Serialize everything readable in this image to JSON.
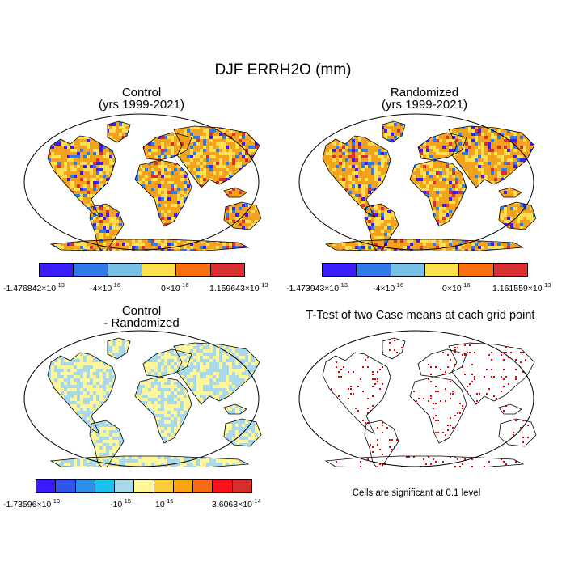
{
  "title": "DJF ERRH2O (mm)",
  "panels": {
    "control": {
      "line1": "Control",
      "line2": "(yrs 1999-2021)"
    },
    "randomized": {
      "line1": "Randomized",
      "line2": "(yrs 1999-2021)"
    },
    "difference": {
      "line1": "Control",
      "line2": "- Randomized"
    },
    "ttest": {
      "line1": "T-Test of two Case means at each grid point"
    }
  },
  "colorbars": {
    "control": {
      "colors": [
        "#3a1cff",
        "#2f7be8",
        "#78c0e6",
        "#fde050",
        "#fb6f14",
        "#d83030"
      ],
      "labels": [
        {
          "mant": "-1.476842",
          "exp": "-13"
        },
        {
          "mant": "-4",
          "exp": "-16"
        },
        {
          "mant": "0",
          "exp": "-16"
        },
        {
          "mant": "1.159643",
          "exp": "-13"
        }
      ]
    },
    "randomized": {
      "colors": [
        "#3a1cff",
        "#2f7be8",
        "#78c0e6",
        "#fde050",
        "#fb6f14",
        "#d83030"
      ],
      "labels": [
        {
          "mant": "-1.473943",
          "exp": "-13"
        },
        {
          "mant": "-4",
          "exp": "-16"
        },
        {
          "mant": "0",
          "exp": "-16"
        },
        {
          "mant": "1.161559",
          "exp": "-13"
        }
      ]
    },
    "difference": {
      "colors": [
        "#3a1cff",
        "#2e55e8",
        "#2e8fe8",
        "#1ec0f0",
        "#a8d8ea",
        "#fdf79a",
        "#fccc3a",
        "#fca014",
        "#fb6a14",
        "#f8101a",
        "#d82d2d"
      ],
      "labels": [
        {
          "mant": "-1.73596",
          "exp": "-13"
        },
        {
          "mant": "-10",
          "exp": "-15"
        },
        {
          "mant": "10",
          "exp": "-15"
        },
        {
          "mant": "3.6063",
          "exp": "-14"
        }
      ]
    }
  },
  "ttest_note": "Cells are significant at 0.1 level",
  "map_colors": {
    "orange": "#f3a21d",
    "yellow": "#fde050",
    "blue": "#2f7be8",
    "darkblue": "#3a1cff",
    "red": "#d83030",
    "lightblue": "#a8d8ea",
    "paleyellow": "#fdf79a",
    "sig_red": "#e00000"
  }
}
